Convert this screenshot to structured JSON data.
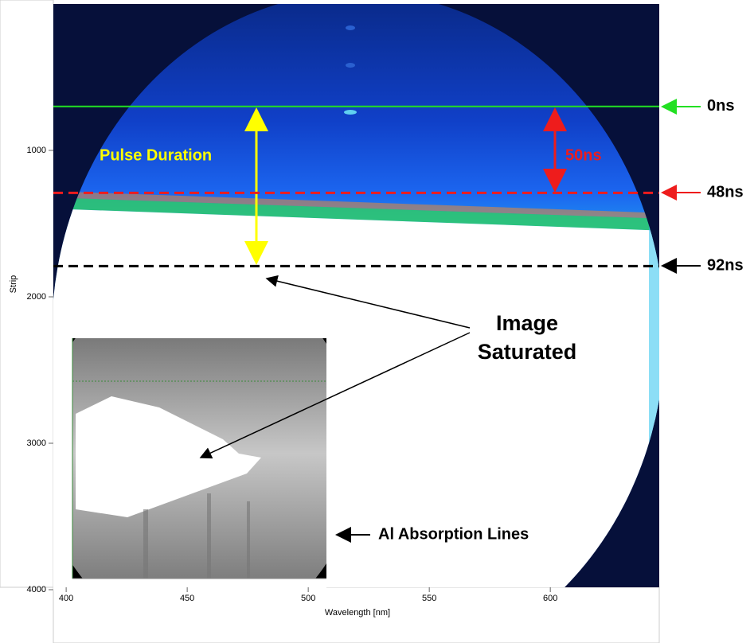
{
  "chart_data": {
    "type": "image",
    "x_label": "Wavelength [nm]",
    "y_label": "Strip",
    "xlim": [
      394.7,
      645
    ],
    "ylim": [
      4000,
      0
    ],
    "xticks": [
      400,
      450,
      500,
      550,
      600
    ],
    "yticks": [
      1000,
      2000,
      3000,
      4000
    ],
    "markers": [
      {
        "strip": 700,
        "color": "#22e022",
        "label": "0ns"
      },
      {
        "strip": 1290,
        "color": "#ee1c1c",
        "label": "48ns"
      },
      {
        "strip": 1790,
        "color": "#000000",
        "label": "92ns"
      }
    ],
    "annotations": {
      "pulse": "Pulse Duration",
      "gap": "50ns",
      "saturated": [
        "Image",
        "Saturated"
      ],
      "absorption": "Al Absorption Lines"
    }
  }
}
